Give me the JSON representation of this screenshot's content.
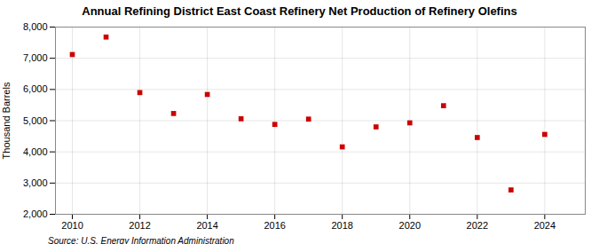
{
  "chart_data": {
    "type": "scatter",
    "title": "Annual Refining District East Coast Refinery Net Production of Refinery Olefins",
    "ylabel": "Thousand Barrels",
    "source": "Source: U.S. Energy Information Administration",
    "x": [
      2010,
      2011,
      2012,
      2013,
      2014,
      2015,
      2016,
      2017,
      2018,
      2019,
      2020,
      2021,
      2022,
      2023,
      2024
    ],
    "values": [
      7120,
      7680,
      5900,
      5230,
      5840,
      5060,
      4880,
      5050,
      4160,
      4800,
      4930,
      5480,
      4460,
      2780,
      4560
    ],
    "color": "#cc0000",
    "marker": "square",
    "xlim": [
      2009.5,
      2025.2
    ],
    "xticks": [
      2010,
      2012,
      2014,
      2016,
      2018,
      2020,
      2022,
      2024
    ],
    "ylim": [
      2000,
      8000
    ],
    "yticks": [
      {
        "value": 2000,
        "label": "2,000"
      },
      {
        "value": 3000,
        "label": "3,000"
      },
      {
        "value": 4000,
        "label": "4,000"
      },
      {
        "value": 5000,
        "label": "5,000"
      },
      {
        "value": 6000,
        "label": "6,000"
      },
      {
        "value": 7000,
        "label": "7,000"
      },
      {
        "value": 8000,
        "label": "8,000"
      }
    ],
    "grid": true
  }
}
